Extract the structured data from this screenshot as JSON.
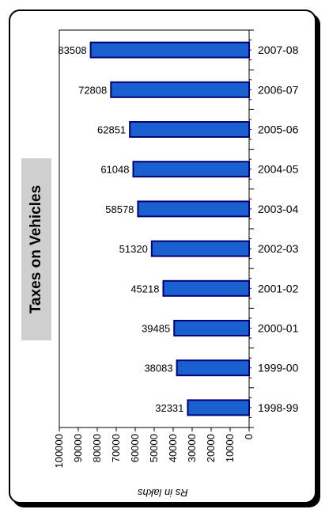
{
  "chart_data": {
    "type": "bar",
    "orientation": "horizontal",
    "title": "Taxes on Vehicles",
    "xlabel": "Rs in lakhs",
    "ylabel": "",
    "categories": [
      "2007-08",
      "2006-07",
      "2005-06",
      "2004-05",
      "2003-04",
      "2002-03",
      "2001-02",
      "2000-01",
      "1999-00",
      "1998-99"
    ],
    "values": [
      83508,
      72808,
      62851,
      61048,
      58578,
      51320,
      45218,
      39485,
      38083,
      32331
    ],
    "xlim": [
      0,
      100000
    ],
    "x_ticks": [
      "100000",
      "90000",
      "80000",
      "70000",
      "60000",
      "50000",
      "40000",
      "30000",
      "20000",
      "10000",
      "0"
    ],
    "x_axis_reversed": true,
    "grid": false,
    "bar_color": "#1a5fd0",
    "bar_edge_color": "#00007a"
  }
}
